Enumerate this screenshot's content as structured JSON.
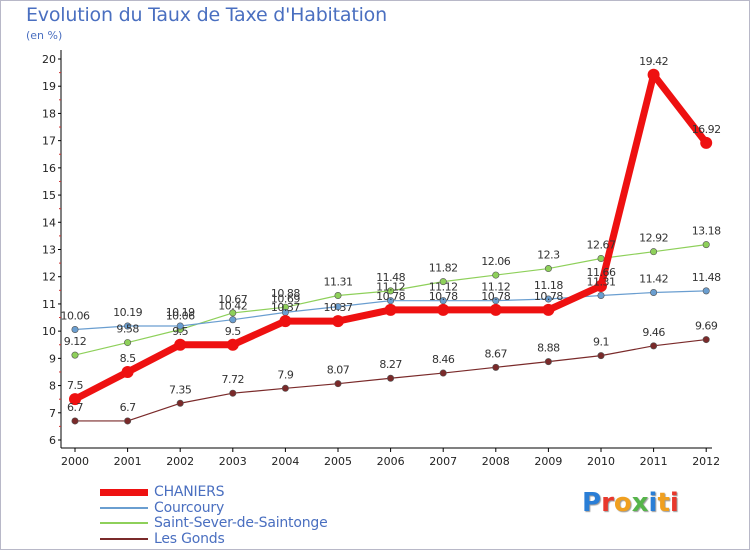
{
  "title": "Evolution du Taux de Taxe d'Habitation",
  "subtitle": "(en %)",
  "logo": {
    "text": "Proxiti",
    "letter_colors": [
      "#2a7ed6",
      "#e8382c",
      "#f0a020",
      "#56b44a",
      "#2a7ed6",
      "#f0a020",
      "#e8382c"
    ]
  },
  "chart_data": {
    "type": "line",
    "x": [
      "2000",
      "2001",
      "2002",
      "2003",
      "2004",
      "2005",
      "2006",
      "2007",
      "2008",
      "2009",
      "2010",
      "2011",
      "2012"
    ],
    "ylim": [
      6,
      20
    ],
    "yticks": [
      "6",
      "7",
      "8",
      "9",
      "10",
      "11",
      "12",
      "13",
      "14",
      "15",
      "16",
      "17",
      "18",
      "19",
      "20"
    ],
    "grid": false,
    "legend_position": "bottom-left",
    "series": [
      {
        "name": "CHANIERS",
        "color": "#ee1111",
        "values": [
          7.5,
          8.5,
          9.5,
          9.5,
          10.37,
          10.37,
          10.78,
          10.78,
          10.78,
          10.78,
          11.66,
          19.42,
          16.92
        ],
        "labels": [
          "7.5",
          "8.5",
          "9.5",
          "9.5",
          "10.37",
          "10.37",
          "10.78",
          "10.78",
          "10.78",
          "10.78",
          "11.66",
          "19.42",
          "16.92"
        ]
      },
      {
        "name": "Courcoury",
        "color": "#6a9ed0",
        "values": [
          10.06,
          10.19,
          10.19,
          10.42,
          10.69,
          10.9,
          11.12,
          11.12,
          11.12,
          11.18,
          11.31,
          11.42,
          11.48
        ],
        "labels": [
          "10.06",
          "10.19",
          "10.19",
          "10.42",
          "10.69",
          "",
          "11.12",
          "11.12",
          "11.12",
          "11.18",
          "11.31",
          "11.42",
          "11.48"
        ]
      },
      {
        "name": "Saint-Sever-de-Saintonge",
        "color": "#8ed05a",
        "values": [
          9.12,
          9.58,
          10.06,
          10.67,
          10.88,
          11.31,
          11.48,
          11.82,
          12.06,
          12.3,
          12.67,
          12.92,
          13.18
        ],
        "labels": [
          "9.12",
          "9.58",
          "10.06",
          "10.67",
          "10.88",
          "11.31",
          "11.48",
          "11.82",
          "12.06",
          "12.3",
          "12.67",
          "12.92",
          "13.18"
        ]
      },
      {
        "name": "Les Gonds",
        "color": "#7a2a2a",
        "values": [
          6.7,
          6.7,
          7.35,
          7.72,
          7.9,
          8.07,
          8.27,
          8.46,
          8.67,
          8.88,
          9.1,
          9.46,
          9.69
        ],
        "labels": [
          "6.7",
          "6.7",
          "7.35",
          "7.72",
          "7.9",
          "8.07",
          "8.27",
          "8.46",
          "8.67",
          "8.88",
          "9.1",
          "9.46",
          "9.69"
        ]
      }
    ]
  }
}
